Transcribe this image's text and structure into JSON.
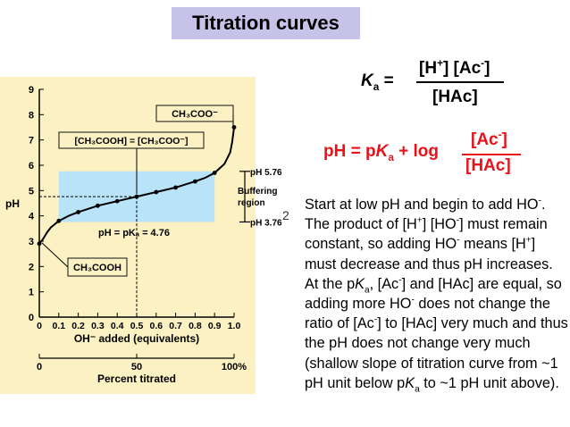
{
  "slide": {
    "title": "Titration curves",
    "slide_number": "2"
  },
  "ka_equation": {
    "lhs": "K",
    "lhs_sub": "a",
    "equals": "=",
    "numerator_h": "[H",
    "numerator_h_sup": "+",
    "numerator_close": "]",
    "numerator_ac": "[Ac",
    "numerator_ac_sup": "-",
    "numerator_ac_close": "]",
    "denominator": "[HAc]"
  },
  "hh_equation": {
    "lhs_pre": "pH = p",
    "lhs_k": "K",
    "lhs_k_sub": "a",
    "lhs_post": " + log",
    "numerator": "[Ac",
    "numerator_sup": "-",
    "numerator_close": "]",
    "denominator": "[HAc]",
    "color": "#e8131a"
  },
  "description": {
    "parts": [
      "Start at low pH and begin to add HO",
      "-",
      ".  The product of [H",
      "+",
      "] [HO",
      "-",
      "] must remain constant, so adding HO",
      "-",
      " means [H",
      "+",
      "] must decrease and thus pH increases.  At the p",
      "K",
      "a",
      ", [Ac",
      "-",
      "] and [HAc] are equal, so adding more HO",
      "-",
      " does not change the ratio of [Ac",
      "-",
      "] to [HAc] very much and thus the pH does not change very much (shallow slope of titration curve from ~1 pH unit below p",
      "K",
      "a",
      " to ~1 pH unit above)."
    ]
  },
  "chart_data": {
    "type": "line",
    "xlabel": "OH⁻ added (equivalents)",
    "ylabel": "pH",
    "x2label": "Percent titrated",
    "x": [
      0,
      0.01,
      0.02,
      0.04,
      0.06,
      0.1,
      0.15,
      0.2,
      0.3,
      0.4,
      0.5,
      0.6,
      0.7,
      0.8,
      0.85,
      0.9,
      0.95,
      0.98,
      0.99,
      1.0
    ],
    "y": [
      2.9,
      3.0,
      3.1,
      3.35,
      3.55,
      3.8,
      4.0,
      4.15,
      4.4,
      4.58,
      4.76,
      4.94,
      5.12,
      5.36,
      5.5,
      5.7,
      6.05,
      6.5,
      6.9,
      7.5
    ],
    "xlim": [
      0,
      1.0
    ],
    "ylim": [
      0,
      9
    ],
    "xticks": [
      "0",
      "0.1",
      "0.2",
      "0.3",
      "0.4",
      "0.5",
      "0.6",
      "0.7",
      "0.8",
      "0.9",
      "1.0"
    ],
    "yticks": [
      "0",
      "1",
      "2",
      "3",
      "4",
      "5",
      "6",
      "7",
      "8",
      "9"
    ],
    "x2ticks": [
      "0",
      "50",
      "100%"
    ],
    "buffering_region": {
      "ph_low": 3.76,
      "ph_high": 5.76,
      "x_from": 0.1,
      "x_to": 0.9
    },
    "pka": 4.76,
    "annotations": {
      "ch3cooh": "CH₃COOH",
      "ch3coo": "CH₃COO⁻",
      "equal": "[CH₃COOH] = [CH₃COO⁻]",
      "pka_label": "pH = pKₐ = 4.76",
      "ph_high_label": "pH 5.76",
      "ph_low_label": "pH 3.76",
      "buffering_line1": "Buffering",
      "buffering_line2": "region"
    },
    "colors": {
      "panel": "#fcf1c2",
      "band": "#b9e3f8",
      "curve": "#000000",
      "box_border": "#111111"
    }
  }
}
